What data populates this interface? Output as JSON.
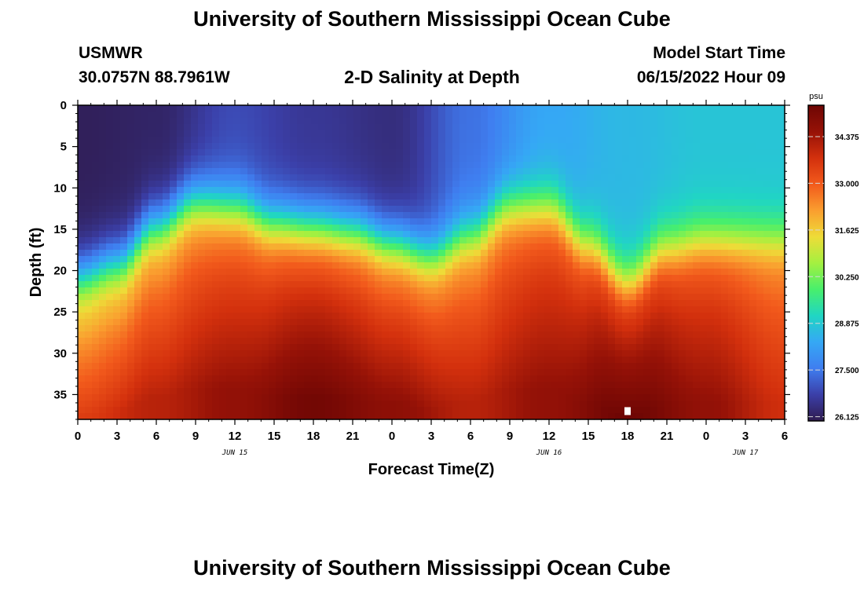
{
  "header": {
    "title": "University of Southern Mississippi Ocean Cube",
    "station": "USMWR",
    "coords": "30.0757N  88.7961W",
    "subtitle": "2-D Salinity at Depth",
    "model_label": "Model Start Time",
    "model_time": "06/15/2022 Hour 09"
  },
  "footer": {
    "title": "University of Southern Mississippi Ocean Cube"
  },
  "chart_data": {
    "type": "heatmap",
    "title": "2-D Salinity at Depth",
    "xlabel": "Forecast Time(Z)",
    "ylabel": "Depth (ft)",
    "x_ticks": [
      "0",
      "3",
      "6",
      "9",
      "12",
      "15",
      "18",
      "21",
      "0",
      "3",
      "6",
      "9",
      "12",
      "15",
      "18",
      "21",
      "0",
      "3",
      "6"
    ],
    "x_range_hours": [
      0,
      54
    ],
    "date_labels": [
      {
        "label": "JUN 15",
        "hour": 12
      },
      {
        "label": "JUN 16",
        "hour": 36
      },
      {
        "label": "JUN 17",
        "hour": 51
      }
    ],
    "y_ticks": [
      0,
      5,
      10,
      15,
      20,
      25,
      30,
      35
    ],
    "y_range_ft": [
      0,
      38
    ],
    "y_inverted": true,
    "colorbar": {
      "unit": "psu",
      "ticks": [
        34.375,
        33.0,
        31.625,
        30.25,
        28.875,
        27.5,
        26.125
      ],
      "tick_labels": [
        "34.375",
        "33.000",
        "31.625",
        "30.250",
        "28.875",
        "27.500",
        "26.125"
      ],
      "range": [
        26.0,
        35.3
      ],
      "colormap": [
        "#2f1b4f",
        "#3b3fa8",
        "#3f7ef0",
        "#35a8f5",
        "#20d6c3",
        "#48ef6c",
        "#a4f040",
        "#eedc38",
        "#fa9e2f",
        "#f25a1c",
        "#d3300d",
        "#961207",
        "#6e0604"
      ]
    },
    "halocline_depth_ft": [
      {
        "hour": 0,
        "depth": 21.0
      },
      {
        "hour": 3,
        "depth": 19.5
      },
      {
        "hour": 6,
        "depth": 15.0
      },
      {
        "hour": 9,
        "depth": 12.0
      },
      {
        "hour": 12,
        "depth": 12.5
      },
      {
        "hour": 15,
        "depth": 14.5
      },
      {
        "hour": 18,
        "depth": 15.0
      },
      {
        "hour": 21,
        "depth": 15.5
      },
      {
        "hour": 24,
        "depth": 17.0
      },
      {
        "hour": 27,
        "depth": 18.5
      },
      {
        "hour": 30,
        "depth": 16.0
      },
      {
        "hour": 33,
        "depth": 12.5
      },
      {
        "hour": 36,
        "depth": 12.5
      },
      {
        "hour": 39,
        "depth": 17.0
      },
      {
        "hour": 42,
        "depth": 21.5
      },
      {
        "hour": 45,
        "depth": 17.5
      },
      {
        "hour": 48,
        "depth": 16.5
      },
      {
        "hour": 51,
        "depth": 16.5
      },
      {
        "hour": 54,
        "depth": 16.5
      }
    ],
    "surface_salinity_psu": [
      {
        "hour": 0,
        "value": 26.1
      },
      {
        "hour": 6,
        "value": 26.2
      },
      {
        "hour": 12,
        "value": 26.9
      },
      {
        "hour": 18,
        "value": 26.6
      },
      {
        "hour": 24,
        "value": 26.4
      },
      {
        "hour": 30,
        "value": 27.4
      },
      {
        "hour": 36,
        "value": 28.3
      },
      {
        "hour": 42,
        "value": 28.6
      },
      {
        "hour": 48,
        "value": 28.8
      },
      {
        "hour": 54,
        "value": 28.8
      }
    ],
    "bottom_salinity_psu": [
      {
        "hour": 0,
        "value": 33.5
      },
      {
        "hour": 6,
        "value": 34.1
      },
      {
        "hour": 12,
        "value": 34.6
      },
      {
        "hour": 18,
        "value": 35.2
      },
      {
        "hour": 24,
        "value": 34.7
      },
      {
        "hour": 30,
        "value": 34.1
      },
      {
        "hour": 36,
        "value": 34.6
      },
      {
        "hour": 42,
        "value": 35.3
      },
      {
        "hour": 48,
        "value": 34.6
      },
      {
        "hour": 54,
        "value": 33.8
      }
    ],
    "marker": {
      "hour": 42,
      "depth_ft": 37,
      "color": "#ffffff"
    }
  }
}
